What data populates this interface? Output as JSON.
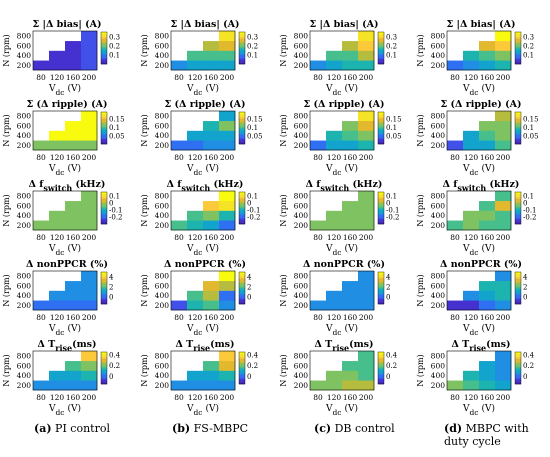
{
  "colors": {
    "colormap": [
      "#3e26a8",
      "#4530d0",
      "#4150e8",
      "#2f6ff1",
      "#1f8ee3",
      "#12a4cd",
      "#1db4b0",
      "#46bf8c",
      "#7fc262",
      "#b6bd3e",
      "#e2b82f",
      "#fbc93a",
      "#f5e325",
      "#f9fb0e"
    ],
    "empty": "#ffffff"
  },
  "captions": [
    {
      "label": "(a)",
      "text": "PI control"
    },
    {
      "label": "(b)",
      "text": "FS-MBPC"
    },
    {
      "label": "(c)",
      "text": "DB control"
    },
    {
      "label": "(d)",
      "text": "MBPC with duty cycle"
    }
  ],
  "chart_data": {
    "type": "heatmap",
    "shared": {
      "x_ticks": [
        "80",
        "120",
        "160",
        "200"
      ],
      "x_label": "V",
      "x_label_sub": "dc",
      "x_label_unit": "(V)",
      "y_ticks": [
        "200",
        "400",
        "600",
        "800"
      ],
      "y_label": "N (rpm)",
      "x_values": [
        80,
        120,
        160,
        200
      ],
      "y_values": [
        200,
        400,
        600,
        800
      ]
    },
    "rows": [
      {
        "title": "Σ |Δ bias| (A)",
        "clim": [
          0,
          0.35
        ],
        "cbar_ticks": [
          "0.3",
          "0.2",
          "0.1"
        ],
        "cbar_values": [
          0.3,
          0.2,
          0.1
        ]
      },
      {
        "title": "Σ (Δ ripple) (A)",
        "clim": [
          0,
          0.19
        ],
        "cbar_ticks": [
          "0.15",
          "0.1",
          "0.05"
        ],
        "cbar_values": [
          0.15,
          0.1,
          0.05
        ]
      },
      {
        "title": "Δ f",
        "title_sub": "switch",
        "title_tail": " (kHz)",
        "clim": [
          -0.3,
          0.15
        ],
        "cbar_ticks": [
          "0.1",
          "0",
          "-0.1",
          "-0.2"
        ],
        "cbar_values": [
          0.1,
          0,
          -0.1,
          -0.2
        ]
      },
      {
        "title": "Δ nonPPCR (%)",
        "clim": [
          -1.5,
          5
        ],
        "cbar_ticks": [
          "4",
          "2",
          "0"
        ],
        "cbar_values": [
          4,
          2,
          0
        ]
      },
      {
        "title": "Δ T",
        "title_sub": "rise",
        "title_tail": "(ms)",
        "clim": [
          -0.15,
          0.45
        ],
        "cbar_ticks": [
          "0.4",
          "0.2",
          "0"
        ],
        "cbar_values": [
          0.4,
          0.2,
          0
        ]
      }
    ],
    "panels": [
      [
        {
          "values": [
            [
              0.02,
              0.03,
              0.04,
              0.05
            ],
            [
              null,
              0.03,
              0.04,
              0.06
            ],
            [
              null,
              null,
              0.04,
              0.06
            ],
            [
              null,
              null,
              null,
              0.05
            ]
          ]
        },
        {
          "values": [
            [
              0.12,
              0.12,
              0.12,
              0.12
            ],
            [
              null,
              0.19,
              0.19,
              0.19
            ],
            [
              null,
              null,
              0.19,
              0.19
            ],
            [
              null,
              null,
              null,
              0.19
            ]
          ]
        },
        {
          "values": [
            [
              -0.01,
              -0.01,
              -0.01,
              -0.01
            ],
            [
              null,
              -0.01,
              -0.01,
              -0.01
            ],
            [
              null,
              null,
              -0.01,
              -0.01
            ],
            [
              null,
              null,
              null,
              -0.01
            ]
          ]
        },
        {
          "values": [
            [
              0.2,
              0.2,
              0.2,
              0.2
            ],
            [
              null,
              0.3,
              0.3,
              0.3
            ],
            [
              null,
              null,
              0.3,
              0.3
            ],
            [
              null,
              null,
              null,
              0.3
            ]
          ]
        },
        {
          "values": [
            [
              0.05,
              0.05,
              0.05,
              0.05
            ],
            [
              null,
              0.1,
              0.1,
              0.12
            ],
            [
              null,
              null,
              0.18,
              0.2
            ],
            [
              null,
              null,
              null,
              0.38
            ]
          ]
        }
      ],
      [
        {
          "values": [
            [
              0.1,
              0.14,
              0.14,
              0.14
            ],
            [
              null,
              0.2,
              0.18,
              0.2
            ],
            [
              null,
              null,
              0.24,
              0.26
            ],
            [
              null,
              null,
              null,
              0.33
            ]
          ]
        },
        {
          "values": [
            [
              0.04,
              0.05,
              0.06,
              0.06
            ],
            [
              null,
              0.07,
              0.08,
              0.08
            ],
            [
              null,
              null,
              0.09,
              0.12
            ],
            [
              null,
              null,
              null,
              0.07
            ]
          ]
        },
        {
          "values": [
            [
              -0.05,
              -0.1,
              -0.14,
              -0.2
            ],
            [
              null,
              -0.05,
              -0.02,
              -0.1
            ],
            [
              null,
              null,
              0.07,
              0.1
            ],
            [
              null,
              null,
              null,
              0.14
            ]
          ]
        },
        {
          "values": [
            [
              -0.5,
              1.5,
              2.2,
              0.5
            ],
            [
              null,
              2.2,
              2.8,
              0.2
            ],
            [
              null,
              null,
              3.6,
              3.2
            ],
            [
              null,
              null,
              null,
              5
            ]
          ]
        },
        {
          "values": [
            [
              0.05,
              0.05,
              0.05,
              0.05
            ],
            [
              null,
              0.1,
              0.1,
              0.12
            ],
            [
              null,
              null,
              0.18,
              0.3
            ],
            [
              null,
              null,
              null,
              0.38
            ]
          ]
        }
      ],
      [
        {
          "values": [
            [
              0.1,
              0.14,
              0.15,
              0.17
            ],
            [
              null,
              0.18,
              0.2,
              0.25
            ],
            [
              null,
              null,
              0.24,
              0.3
            ],
            [
              null,
              null,
              null,
              0.33
            ]
          ]
        },
        {
          "values": [
            [
              0.05,
              0.07,
              0.08,
              0.09
            ],
            [
              null,
              0.09,
              0.1,
              0.12
            ],
            [
              null,
              null,
              0.11,
              0.14
            ],
            [
              null,
              null,
              null,
              0.18
            ]
          ]
        },
        {
          "values": [
            [
              -0.01,
              -0.01,
              -0.01,
              -0.01
            ],
            [
              null,
              -0.01,
              -0.01,
              -0.01
            ],
            [
              null,
              null,
              -0.01,
              -0.01
            ],
            [
              null,
              null,
              null,
              -0.01
            ]
          ]
        },
        {
          "values": [
            [
              0.3,
              0.3,
              0.3,
              0.3
            ],
            [
              null,
              0.3,
              0.3,
              0.3
            ],
            [
              null,
              null,
              0.3,
              0.3
            ],
            [
              null,
              null,
              null,
              0.3
            ]
          ]
        },
        {
          "values": [
            [
              0.24,
              0.24,
              0.25,
              0.26
            ],
            [
              null,
              0.2,
              0.2,
              0.18
            ],
            [
              null,
              null,
              0.18,
              0.15
            ],
            [
              null,
              null,
              null,
              0.16
            ]
          ]
        }
      ],
      [
        {
          "values": [
            [
              0.08,
              0.1,
              0.14,
              0.16
            ],
            [
              null,
              0.15,
              0.18,
              0.22
            ],
            [
              null,
              null,
              0.27,
              0.3
            ],
            [
              null,
              null,
              null,
              0.34
            ]
          ]
        },
        {
          "values": [
            [
              0.03,
              0.07,
              0.08,
              0.1
            ],
            [
              null,
              0.07,
              0.1,
              0.12
            ],
            [
              null,
              null,
              0.11,
              0.12
            ],
            [
              null,
              null,
              null,
              0.13
            ]
          ]
        },
        {
          "values": [
            [
              -0.05,
              -0.03,
              -0.05,
              -0.05
            ],
            [
              null,
              -0.03,
              -0.03,
              -0.05
            ],
            [
              null,
              null,
              -0.05,
              0.05
            ],
            [
              null,
              null,
              null,
              -0.05
            ]
          ]
        },
        {
          "values": [
            [
              -1.2,
              -1.2,
              0.2,
              0.5
            ],
            [
              null,
              0.5,
              0.8,
              1.5
            ],
            [
              null,
              null,
              1.5,
              1.5
            ],
            [
              null,
              null,
              null,
              0.5
            ]
          ]
        },
        {
          "values": [
            [
              0.2,
              0.15,
              0.12,
              0.1
            ],
            [
              null,
              0.12,
              0.1,
              0.05
            ],
            [
              null,
              null,
              0.1,
              0.05
            ],
            [
              null,
              null,
              null,
              0.05
            ]
          ]
        }
      ]
    ]
  }
}
